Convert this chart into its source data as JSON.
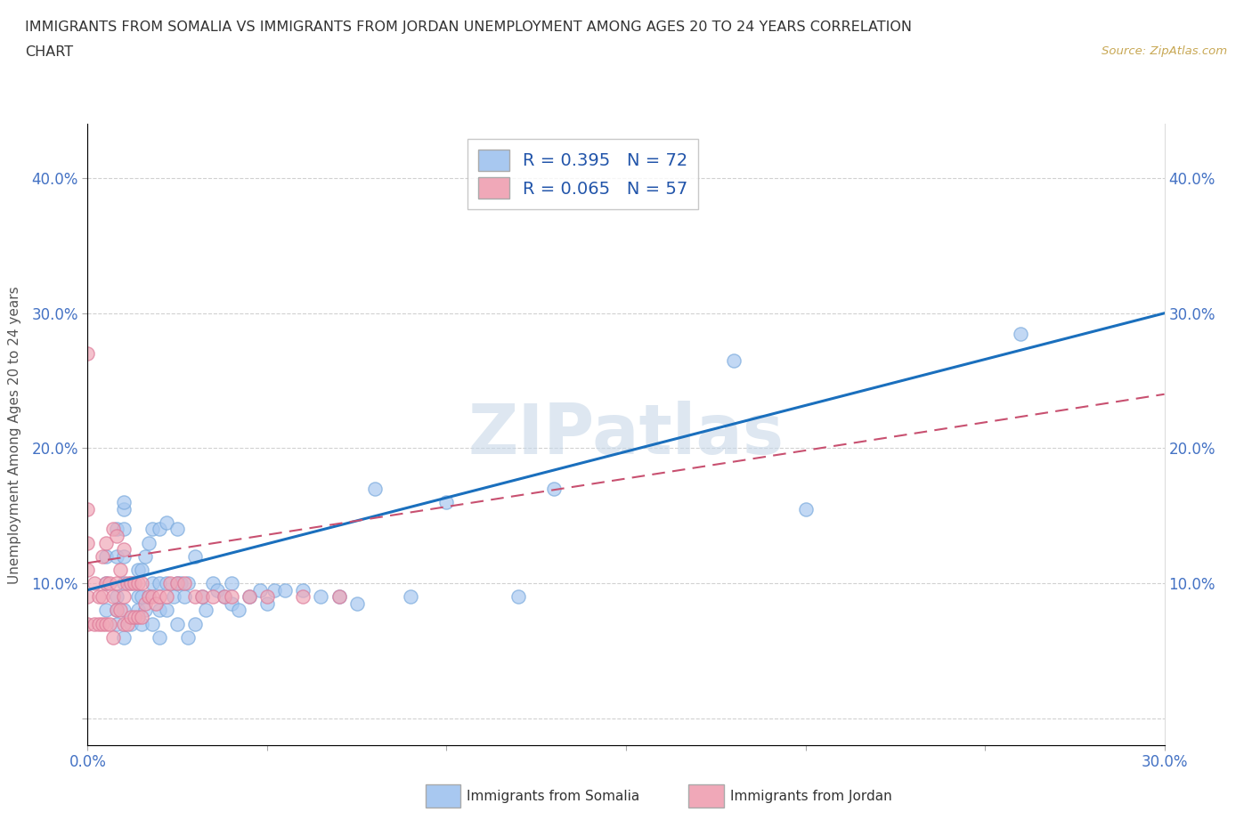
{
  "title_line1": "IMMIGRANTS FROM SOMALIA VS IMMIGRANTS FROM JORDAN UNEMPLOYMENT AMONG AGES 20 TO 24 YEARS CORRELATION",
  "title_line2": "CHART",
  "source": "Source: ZipAtlas.com",
  "ylabel": "Unemployment Among Ages 20 to 24 years",
  "xlim": [
    0.0,
    0.3
  ],
  "ylim": [
    -0.02,
    0.44
  ],
  "somalia_R": 0.395,
  "somalia_N": 72,
  "jordan_R": 0.065,
  "jordan_N": 57,
  "somalia_color": "#a8c8f0",
  "jordan_color": "#f0a8b8",
  "somalia_line_color": "#1a6fbd",
  "jordan_line_color": "#c85070",
  "watermark": "ZIPatlas",
  "watermark_color": "#c8d8e8",
  "somalia_x": [
    0.005,
    0.005,
    0.005,
    0.008,
    0.008,
    0.008,
    0.008,
    0.008,
    0.01,
    0.01,
    0.01,
    0.01,
    0.01,
    0.01,
    0.01,
    0.012,
    0.012,
    0.014,
    0.014,
    0.014,
    0.015,
    0.015,
    0.015,
    0.016,
    0.016,
    0.017,
    0.017,
    0.018,
    0.018,
    0.018,
    0.02,
    0.02,
    0.02,
    0.02,
    0.022,
    0.022,
    0.022,
    0.024,
    0.025,
    0.025,
    0.025,
    0.026,
    0.027,
    0.028,
    0.028,
    0.03,
    0.03,
    0.032,
    0.033,
    0.035,
    0.036,
    0.038,
    0.04,
    0.04,
    0.042,
    0.045,
    0.048,
    0.05,
    0.052,
    0.055,
    0.06,
    0.065,
    0.07,
    0.075,
    0.08,
    0.09,
    0.1,
    0.12,
    0.13,
    0.18,
    0.2,
    0.26
  ],
  "somalia_y": [
    0.08,
    0.1,
    0.12,
    0.07,
    0.08,
    0.09,
    0.12,
    0.14,
    0.06,
    0.08,
    0.1,
    0.12,
    0.14,
    0.155,
    0.16,
    0.07,
    0.1,
    0.08,
    0.09,
    0.11,
    0.07,
    0.09,
    0.11,
    0.08,
    0.12,
    0.09,
    0.13,
    0.07,
    0.1,
    0.14,
    0.06,
    0.08,
    0.1,
    0.14,
    0.08,
    0.1,
    0.145,
    0.09,
    0.07,
    0.1,
    0.14,
    0.1,
    0.09,
    0.06,
    0.1,
    0.07,
    0.12,
    0.09,
    0.08,
    0.1,
    0.095,
    0.09,
    0.085,
    0.1,
    0.08,
    0.09,
    0.095,
    0.085,
    0.095,
    0.095,
    0.095,
    0.09,
    0.09,
    0.085,
    0.17,
    0.09,
    0.16,
    0.09,
    0.17,
    0.265,
    0.155,
    0.285
  ],
  "jordan_x": [
    0.0,
    0.0,
    0.0,
    0.0,
    0.0,
    0.0,
    0.002,
    0.002,
    0.003,
    0.003,
    0.004,
    0.004,
    0.004,
    0.005,
    0.005,
    0.005,
    0.006,
    0.006,
    0.007,
    0.007,
    0.007,
    0.008,
    0.008,
    0.008,
    0.009,
    0.009,
    0.01,
    0.01,
    0.01,
    0.011,
    0.011,
    0.012,
    0.012,
    0.013,
    0.013,
    0.014,
    0.014,
    0.015,
    0.015,
    0.016,
    0.017,
    0.018,
    0.019,
    0.02,
    0.022,
    0.023,
    0.025,
    0.027,
    0.03,
    0.032,
    0.035,
    0.038,
    0.04,
    0.045,
    0.05,
    0.06,
    0.07
  ],
  "jordan_y": [
    0.07,
    0.09,
    0.11,
    0.13,
    0.155,
    0.27,
    0.07,
    0.1,
    0.07,
    0.09,
    0.07,
    0.09,
    0.12,
    0.07,
    0.1,
    0.13,
    0.07,
    0.1,
    0.06,
    0.09,
    0.14,
    0.08,
    0.1,
    0.135,
    0.08,
    0.11,
    0.07,
    0.09,
    0.125,
    0.07,
    0.1,
    0.075,
    0.1,
    0.075,
    0.1,
    0.075,
    0.1,
    0.075,
    0.1,
    0.085,
    0.09,
    0.09,
    0.085,
    0.09,
    0.09,
    0.1,
    0.1,
    0.1,
    0.09,
    0.09,
    0.09,
    0.09,
    0.09,
    0.09,
    0.09,
    0.09,
    0.09
  ]
}
